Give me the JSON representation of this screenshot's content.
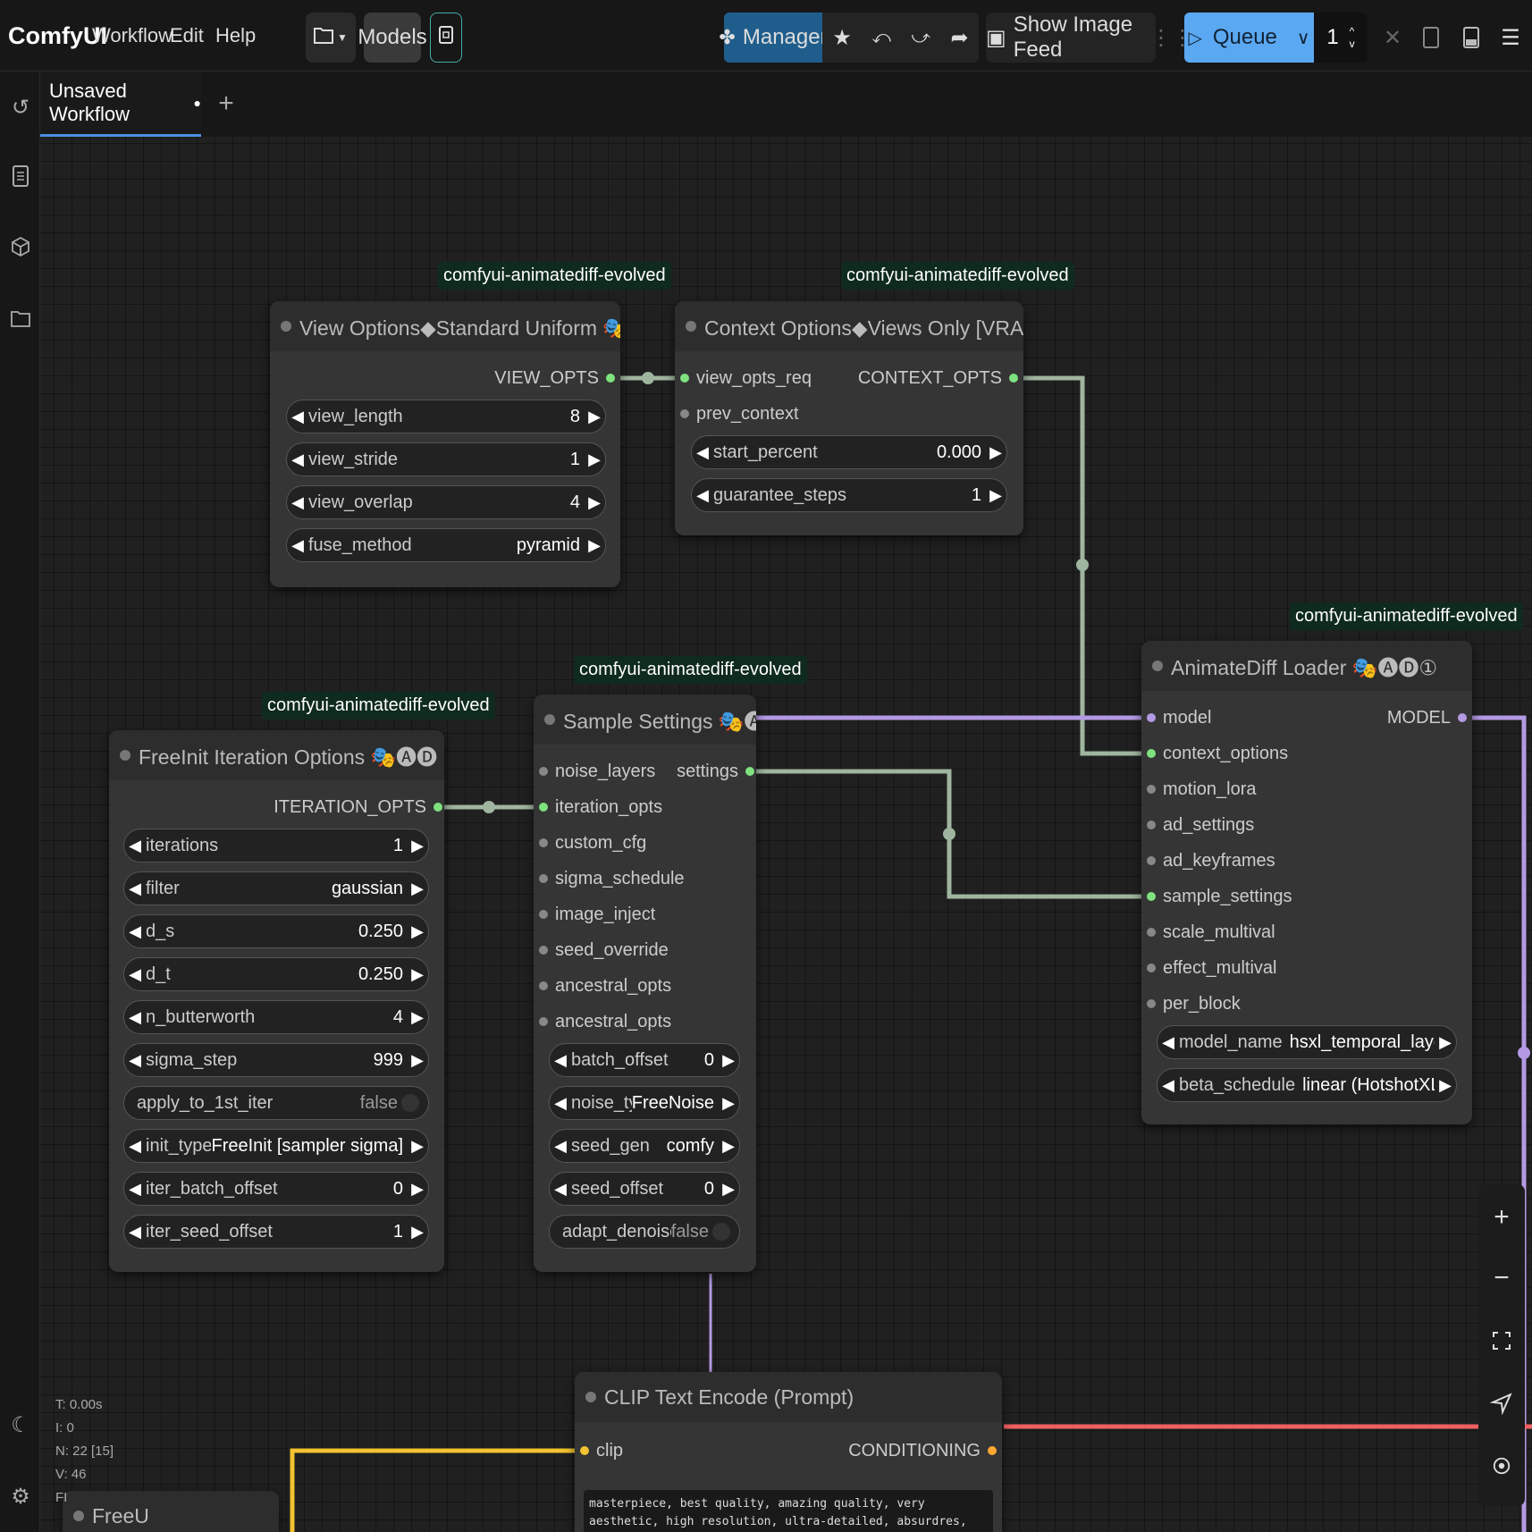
{
  "app": {
    "logo": "ComfyUI"
  },
  "menu": {
    "workflow": "Workflow",
    "edit": "Edit",
    "help": "Help"
  },
  "toolbar": {
    "models": "Models",
    "manager": "Manager",
    "show_image_feed": "Show Image Feed",
    "queue": "Queue",
    "queue_count": "1"
  },
  "tabs": {
    "active": "Unsaved Workflow",
    "dirty_marker": "●"
  },
  "colors": {
    "accent": "#4a90e2",
    "manager_bg": "#1f5e8c",
    "queue_bg": "#5ba8f2",
    "badge_bg": "#0f2a1e",
    "link_purple": "#b49ae4",
    "link_green": "#9fb59f",
    "link_yellow": "#f2c230",
    "link_red": "#f06060"
  },
  "icons": [
    "history-icon",
    "queue-list-icon",
    "model-library-icon",
    "workflows-icon",
    "moon-icon",
    "settings-icon",
    "folder-icon",
    "save-icon",
    "puzzle-icon",
    "star-icon",
    "undo-icon",
    "redo-icon",
    "share-icon",
    "image-icon",
    "play-icon",
    "chevron-down-icon",
    "close-icon",
    "layout-icon",
    "bottom-panel-icon",
    "hamburger-icon",
    "plus-icon",
    "minus-icon",
    "fit-view-icon",
    "locate-icon",
    "center-icon"
  ],
  "nodes": {
    "view_options": {
      "badge": "comfyui-animatediff-evolved",
      "title": "View Options◆Standard Uniform 🎭🅐🅓",
      "output": "VIEW_OPTS",
      "widgets": [
        {
          "label": "view_length",
          "value": "8"
        },
        {
          "label": "view_stride",
          "value": "1"
        },
        {
          "label": "view_overlap",
          "value": "4"
        },
        {
          "label": "fuse_method",
          "value": "pyramid"
        }
      ]
    },
    "context_options": {
      "badge": "comfyui-animatediff-evolved",
      "title": "Context Options◆Views Only [VRAM⇈] 🎭🅐🅓",
      "inputs": [
        "view_opts_req",
        "prev_context"
      ],
      "output": "CONTEXT_OPTS",
      "widgets": [
        {
          "label": "start_percent",
          "value": "0.000"
        },
        {
          "label": "guarantee_steps",
          "value": "1"
        }
      ]
    },
    "freeinit": {
      "badge": "comfyui-animatediff-evolved",
      "title": "FreeInit Iteration Options 🎭🅐🅓",
      "output": "ITERATION_OPTS",
      "widgets": [
        {
          "label": "iterations",
          "value": "1"
        },
        {
          "label": "filter",
          "value": "gaussian"
        },
        {
          "label": "d_s",
          "value": "0.250"
        },
        {
          "label": "d_t",
          "value": "0.250"
        },
        {
          "label": "n_butterworth",
          "value": "4"
        },
        {
          "label": "sigma_step",
          "value": "999"
        },
        {
          "label": "apply_to_1st_iter",
          "value": "false"
        },
        {
          "label": "init_type",
          "value": "FreeInit [sampler sigma]"
        },
        {
          "label": "iter_batch_offset",
          "value": "0"
        },
        {
          "label": "iter_seed_offset",
          "value": "1"
        }
      ]
    },
    "sample_settings": {
      "badge": "comfyui-animatediff-evolved",
      "title": "Sample Settings 🎭🅐🅓",
      "inputs": [
        "noise_layers",
        "iteration_opts",
        "custom_cfg",
        "sigma_schedule",
        "image_inject",
        "seed_override",
        "ancestral_opts",
        "ancestral_opts"
      ],
      "output": "settings",
      "widgets": [
        {
          "label": "batch_offset",
          "value": "0"
        },
        {
          "label": "noise_type",
          "value": "FreeNoise"
        },
        {
          "label": "seed_gen",
          "value": "comfy"
        },
        {
          "label": "seed_offset",
          "value": "0"
        },
        {
          "label": "adapt_denoise_steps",
          "value": "false"
        }
      ]
    },
    "animatediff_loader": {
      "badge": "comfyui-animatediff-evolved",
      "title": "AnimateDiff Loader 🎭🅐🅓①",
      "inputs": [
        "model",
        "context_options",
        "motion_lora",
        "ad_settings",
        "ad_keyframes",
        "sample_settings",
        "scale_multival",
        "effect_multival",
        "per_block"
      ],
      "output": "MODEL",
      "widgets": [
        {
          "label": "model_name",
          "value": "hsxl_temporal_layers.f16.saf..."
        },
        {
          "label": "beta_schedule",
          "value": "linear (HotshotXL/default)"
        }
      ]
    },
    "clip_text": {
      "title": "CLIP Text Encode (Prompt)",
      "input": "clip",
      "output": "CONDITIONING",
      "text": "masterpiece, best quality, amazing quality, very aesthetic, high resolution, ultra-detailed, absurdres, newest, scenery, anime, smiling girl, brown hair,"
    },
    "freeu": {
      "title": "FreeU"
    }
  },
  "stats": {
    "t": "T: 0.00s",
    "i": "I: 0",
    "n": "N: 22 [15]",
    "v": "V: 46",
    "f": "FI"
  }
}
